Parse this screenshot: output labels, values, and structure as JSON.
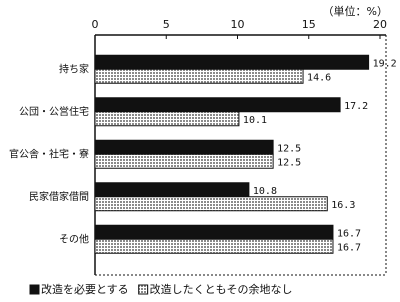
{
  "chart_data": {
    "type": "bar",
    "orientation": "horizontal",
    "unit_label": "（単位：%）",
    "categories": [
      "持ち家",
      "公団・公営住宅",
      "官公舎・社宅・寮",
      "民家借家借間",
      "その他"
    ],
    "series": [
      {
        "name": "改造を必要とする",
        "color": "#111111",
        "values": [
          19.2,
          17.2,
          12.5,
          10.8,
          16.7
        ]
      },
      {
        "name": "改造したくともその余地なし",
        "color": "#8a8a8a",
        "values": [
          14.6,
          10.1,
          12.5,
          16.3,
          16.7
        ]
      }
    ],
    "xlim": [
      0,
      20
    ],
    "xticks": [
      0,
      5,
      10,
      15,
      20
    ]
  }
}
